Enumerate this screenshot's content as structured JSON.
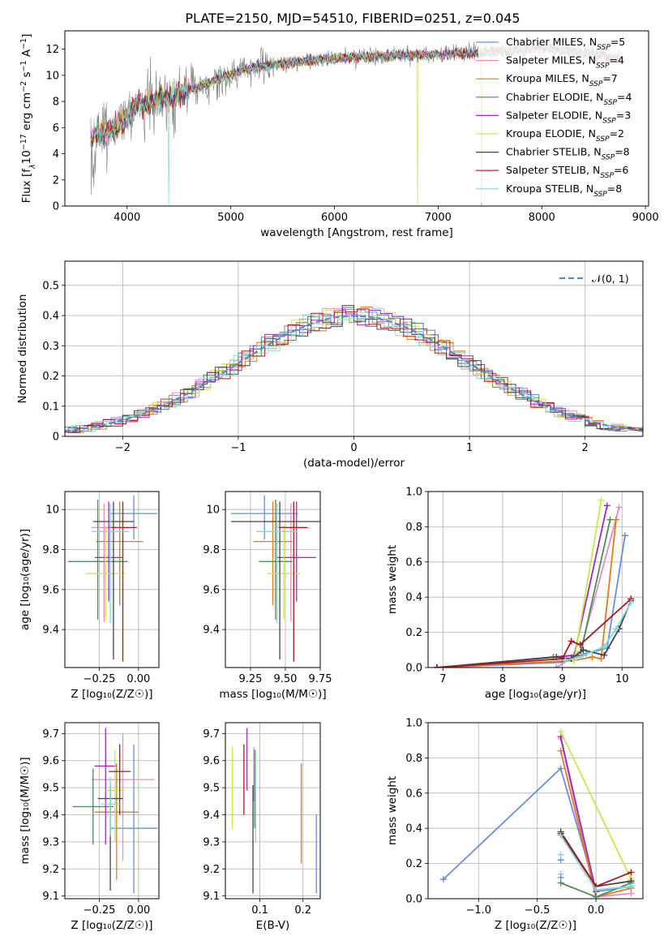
{
  "figure_title": "PLATE=2150, MJD=54510, FIBERID=0251, z=0.045",
  "legend_models": [
    {
      "name": "Chabrier MILES",
      "nssp": "5",
      "color": "#6a8edb"
    },
    {
      "name": "Salpeter MILES",
      "nssp": "4",
      "color": "#e88ac1"
    },
    {
      "name": "Kroupa MILES",
      "nssp": "7",
      "color": "#e07b1a"
    },
    {
      "name": "Chabrier ELODIE",
      "nssp": "4",
      "color": "#4f8a5b"
    },
    {
      "name": "Salpeter ELODIE",
      "nssp": "3",
      "color": "#9a2dbd"
    },
    {
      "name": "Kroupa ELODIE",
      "nssp": "2",
      "color": "#c9e64a"
    },
    {
      "name": "Chabrier STELIB",
      "nssp": "8",
      "color": "#444444"
    },
    {
      "name": "Salpeter STELIB",
      "nssp": "6",
      "color": "#b0141c"
    },
    {
      "name": "Kroupa STELIB",
      "nssp": "8",
      "color": "#7fd8dc"
    }
  ],
  "legend_prefix_nssp": "N",
  "legend_sub_ssp": "SSP",
  "chart_data": [
    {
      "id": "spectrum",
      "type": "line",
      "xlabel": "wavelength [Angstrom, rest frame]",
      "ylabel_parts": [
        "Flux [f",
        "λ",
        "10",
        "−17",
        " erg cm",
        "−2",
        " s",
        "−1",
        " A",
        "−1",
        "]"
      ],
      "xlim": [
        3400,
        9030
      ],
      "ylim": [
        0,
        13.4
      ],
      "xticks": [
        4000,
        5000,
        6000,
        7000,
        8000,
        9000
      ],
      "yticks": [
        0,
        2,
        4,
        6,
        8,
        10,
        12
      ],
      "continuum_points": [
        [
          3650,
          5.3
        ],
        [
          3900,
          6.0
        ],
        [
          4100,
          7.8
        ],
        [
          4400,
          8.3
        ],
        [
          4800,
          9.5
        ],
        [
          5200,
          10.6
        ],
        [
          5600,
          11.0
        ],
        [
          6000,
          11.3
        ],
        [
          6500,
          11.5
        ],
        [
          7000,
          11.6
        ],
        [
          7400,
          11.7
        ],
        [
          8000,
          12.1
        ],
        [
          8500,
          11.6
        ],
        [
          8750,
          11.2
        ]
      ],
      "data_range": [
        3650,
        8750
      ],
      "model_range": [
        3650,
        8750
      ],
      "dropouts": [
        [
          3900,
          1.0
        ],
        [
          4400,
          0.0
        ],
        [
          6800,
          0.0
        ],
        [
          7420,
          0.0
        ]
      ]
    },
    {
      "id": "residuals",
      "type": "line",
      "xlabel": "(data-model)/error",
      "ylabel": "Normed distribution",
      "xlim": [
        -2.5,
        2.5
      ],
      "ylim": [
        0,
        0.58
      ],
      "xticks": [
        -2,
        -1,
        0,
        1,
        2
      ],
      "yticks": [
        0.0,
        0.1,
        0.2,
        0.3,
        0.4,
        0.5
      ],
      "grid": true,
      "gaussian_label": "𝒩(0, 1)",
      "gaussian_color": "#5b86d6",
      "legend_position": "top-right",
      "hist_bin_width": 0.1
    },
    {
      "id": "z-age",
      "type": "scatter",
      "xlabel": "Z [log₁₀(Z/Z☉)]",
      "ylabel": "age  [log₁₀(age/yr)]",
      "xlim": [
        -0.47,
        0.13
      ],
      "ylim": [
        9.21,
        10.09
      ],
      "xticks": [
        -0.25,
        0.0
      ],
      "xtick_labels": [
        "−0.25",
        "0.00"
      ],
      "yticks": [
        9.4,
        9.6,
        9.8,
        10.0
      ],
      "grid": true,
      "points": [
        {
          "x": -0.03,
          "xerr": 0.15,
          "y": 9.98,
          "yerr": [
            0.13,
            0.09
          ],
          "color": "#6a8edb"
        },
        {
          "x": -0.22,
          "xerr": 0.08,
          "y": 9.91,
          "yerr": [
            0.47,
            0.12
          ],
          "color": "#e88ac1"
        },
        {
          "x": -0.12,
          "xerr": 0.15,
          "y": 9.84,
          "yerr": [
            0.32,
            0.2
          ],
          "color": "#e07b1a"
        },
        {
          "x": -0.26,
          "xerr": 0.19,
          "y": 9.74,
          "yerr": [
            0.29,
            0.31
          ],
          "color": "#4f8a5b"
        },
        {
          "x": -0.19,
          "xerr": 0.09,
          "y": 9.76,
          "yerr": [
            0.22,
            0.28
          ],
          "color": "#9a2dbd"
        },
        {
          "x": -0.21,
          "xerr": 0.13,
          "y": 9.68,
          "yerr": [
            0.23,
            0.24
          ],
          "color": "#c9e64a"
        },
        {
          "x": -0.16,
          "xerr": 0.13,
          "y": 9.94,
          "yerr": [
            0.69,
            0.1
          ],
          "color": "#444444"
        },
        {
          "x": -0.1,
          "xerr": 0.09,
          "y": 9.91,
          "yerr": [
            0.67,
            0.13
          ],
          "color": "#b0141c"
        },
        {
          "x": -0.18,
          "xerr": 0.12,
          "y": 9.89,
          "yerr": [
            0.46,
            0.14
          ],
          "color": "#7fd8dc"
        }
      ]
    },
    {
      "id": "mass-age",
      "type": "scatter",
      "xlabel": "mass [log₁₀(M/M☉)]",
      "ylabel": "",
      "xlim": [
        9.07,
        9.75
      ],
      "ylim": [
        9.21,
        10.09
      ],
      "xticks": [
        9.25,
        9.5,
        9.75
      ],
      "xtick_labels": [
        "9.25",
        "9.50",
        "9.75"
      ],
      "yticks": [
        9.4,
        9.6,
        9.8,
        10.0
      ],
      "grid": true,
      "points": [
        {
          "x": 9.35,
          "xerr": 0.24,
          "y": 9.98,
          "yerr": [
            0.13,
            0.09
          ],
          "color": "#6a8edb"
        },
        {
          "x": 9.54,
          "xerr": 0.1,
          "y": 9.91,
          "yerr": [
            0.47,
            0.12
          ],
          "color": "#e88ac1"
        },
        {
          "x": 9.41,
          "xerr": 0.14,
          "y": 9.84,
          "yerr": [
            0.32,
            0.2
          ],
          "color": "#e07b1a"
        },
        {
          "x": 9.43,
          "xerr": 0.12,
          "y": 9.74,
          "yerr": [
            0.29,
            0.31
          ],
          "color": "#4f8a5b"
        },
        {
          "x": 9.58,
          "xerr": 0.14,
          "y": 9.76,
          "yerr": [
            0.22,
            0.28
          ],
          "color": "#9a2dbd"
        },
        {
          "x": 9.49,
          "xerr": 0.12,
          "y": 9.68,
          "yerr": [
            0.23,
            0.24
          ],
          "color": "#c9e64a"
        },
        {
          "x": 9.46,
          "xerr": 0.35,
          "y": 9.94,
          "yerr": [
            0.69,
            0.1
          ],
          "color": "#444444"
        },
        {
          "x": 9.56,
          "xerr": 0.1,
          "y": 9.91,
          "yerr": [
            0.67,
            0.13
          ],
          "color": "#b0141c"
        },
        {
          "x": 9.44,
          "xerr": 0.15,
          "y": 9.89,
          "yerr": [
            0.46,
            0.14
          ],
          "color": "#7fd8dc"
        }
      ]
    },
    {
      "id": "weight-age",
      "type": "line",
      "xlabel": "age  [log₁₀(age/yr)]",
      "ylabel": "mass weight",
      "xlim": [
        6.75,
        10.35
      ],
      "ylim": [
        0,
        1.0
      ],
      "xticks": [
        7,
        8,
        9,
        10
      ],
      "yticks": [
        0.0,
        0.2,
        0.4,
        0.6,
        0.8,
        1.0
      ],
      "ytick_labels": [
        "0.0",
        "0.2",
        "0.4",
        "0.6",
        "0.8",
        "1.0"
      ],
      "grid": true,
      "series": [
        {
          "color": "#6a8edb",
          "x": [
            6.9,
            9.0,
            9.4,
            9.75,
            10.05
          ],
          "y": [
            0.0,
            0.03,
            0.08,
            0.11,
            0.75
          ]
        },
        {
          "color": "#e88ac1",
          "x": [
            8.9,
            9.3,
            9.95
          ],
          "y": [
            0.0,
            0.09,
            0.91
          ]
        },
        {
          "color": "#e07b1a",
          "x": [
            6.9,
            9.2,
            9.5,
            9.65,
            9.9
          ],
          "y": [
            0.0,
            0.04,
            0.06,
            0.05,
            0.84
          ]
        },
        {
          "color": "#4f8a5b",
          "x": [
            6.9,
            8.85,
            9.3,
            9.8
          ],
          "y": [
            0.0,
            0.06,
            0.07,
            0.84
          ]
        },
        {
          "color": "#9a2dbd",
          "x": [
            6.9,
            9.2,
            9.75
          ],
          "y": [
            0.0,
            0.07,
            0.92
          ]
        },
        {
          "color": "#c9e64a",
          "x": [
            9.2,
            9.65
          ],
          "y": [
            0.04,
            0.95
          ]
        },
        {
          "color": "#444444",
          "x": [
            6.9,
            8.9,
            9.15,
            9.35,
            9.7,
            9.95,
            10.15
          ],
          "y": [
            0.0,
            0.06,
            0.05,
            0.1,
            0.07,
            0.22,
            0.38
          ]
        },
        {
          "color": "#b0141c",
          "x": [
            6.9,
            9.0,
            9.15,
            9.3,
            10.15
          ],
          "y": [
            0.0,
            0.05,
            0.15,
            0.13,
            0.39
          ]
        },
        {
          "color": "#7fd8dc",
          "x": [
            9.05,
            9.3,
            9.7,
            9.9,
            10.15
          ],
          "y": [
            0.04,
            0.06,
            0.12,
            0.22,
            0.37
          ]
        }
      ]
    },
    {
      "id": "z-mass",
      "type": "scatter",
      "xlabel": "Z [log₁₀(Z/Z☉)]",
      "ylabel": "mass [log₁₀(M/M☉)]",
      "xlim": [
        -0.47,
        0.13
      ],
      "ylim": [
        9.09,
        9.74
      ],
      "xticks": [
        -0.25,
        0.0
      ],
      "xtick_labels": [
        "−0.25",
        "0.00"
      ],
      "yticks": [
        9.1,
        9.2,
        9.3,
        9.4,
        9.5,
        9.6,
        9.7
      ],
      "grid": true,
      "points": [
        {
          "x": -0.03,
          "xerr": 0.15,
          "y": 9.35,
          "yerr": [
            0.24,
            0.31
          ],
          "color": "#6a8edb"
        },
        {
          "x": -0.1,
          "xerr": 0.2,
          "y": 9.53,
          "yerr": [
            0.3,
            0.17
          ],
          "color": "#e88ac1"
        },
        {
          "x": -0.14,
          "xerr": 0.14,
          "y": 9.41,
          "yerr": [
            0.25,
            0.18
          ],
          "color": "#e07b1a"
        },
        {
          "x": -0.29,
          "xerr": 0.13,
          "y": 9.43,
          "yerr": [
            0.14,
            0.14
          ],
          "color": "#4f8a5b"
        },
        {
          "x": -0.21,
          "xerr": 0.07,
          "y": 9.58,
          "yerr": [
            0.29,
            0.14
          ],
          "color": "#9a2dbd"
        },
        {
          "x": -0.15,
          "xerr": 0.06,
          "y": 9.49,
          "yerr": [
            0.19,
            0.15
          ],
          "color": "#c9e64a"
        },
        {
          "x": -0.18,
          "xerr": 0.08,
          "y": 9.46,
          "yerr": [
            0.34,
            0.05
          ],
          "color": "#444444"
        },
        {
          "x": -0.12,
          "xerr": 0.07,
          "y": 9.56,
          "yerr": [
            0.16,
            0.1
          ],
          "color": "#b0141c"
        },
        {
          "x": -0.18,
          "xerr": 0.06,
          "y": 9.44,
          "yerr": [
            0.12,
            0.1
          ],
          "color": "#7fd8dc"
        }
      ]
    },
    {
      "id": "ebv-mass",
      "type": "scatter",
      "xlabel": "E(B-V)",
      "ylabel": "",
      "xlim": [
        0.02,
        0.24
      ],
      "ylim": [
        9.09,
        9.74
      ],
      "xticks": [
        0.1,
        0.2
      ],
      "xtick_labels": [
        "0.1",
        "0.2"
      ],
      "yticks": [
        9.1,
        9.2,
        9.3,
        9.4,
        9.5,
        9.6,
        9.7
      ],
      "grid": true,
      "points": [
        {
          "x": 0.231,
          "y": 9.26,
          "yerr": [
            0.15,
            0.14
          ],
          "color": "#6a8edb"
        },
        {
          "x": 0.086,
          "y": 9.57,
          "yerr": [
            0.12,
            0.08
          ],
          "color": "#e88ac1"
        },
        {
          "x": 0.196,
          "y": 9.41,
          "yerr": [
            0.19,
            0.18
          ],
          "color": "#e07b1a"
        },
        {
          "x": 0.088,
          "y": 9.47,
          "yerr": [
            0.12,
            0.17
          ],
          "color": "#4f8a5b"
        },
        {
          "x": 0.07,
          "y": 9.58,
          "yerr": [
            0.09,
            0.14
          ],
          "color": "#9a2dbd"
        },
        {
          "x": 0.036,
          "y": 9.5,
          "yerr": [
            0.15,
            0.15
          ],
          "color": "#c9e64a"
        },
        {
          "x": 0.084,
          "y": 9.33,
          "yerr": [
            0.22,
            0.18
          ],
          "color": "#444444"
        },
        {
          "x": 0.063,
          "y": 9.51,
          "yerr": [
            0.11,
            0.15
          ],
          "color": "#b0141c"
        },
        {
          "x": 0.09,
          "y": 9.42,
          "yerr": [
            0.12,
            0.22
          ],
          "color": "#7fd8dc"
        }
      ]
    },
    {
      "id": "weight-z",
      "type": "line",
      "xlabel": "Z [log₁₀(Z/Z☉)]",
      "ylabel": "mass weight",
      "xlim": [
        -1.43,
        0.4
      ],
      "ylim": [
        0,
        1.0
      ],
      "xticks": [
        -1.0,
        -0.5,
        0.0
      ],
      "xtick_labels": [
        "−1.0",
        "−0.5",
        "0.0"
      ],
      "yticks": [
        0.0,
        0.2,
        0.4,
        0.6,
        0.8,
        1.0
      ],
      "ytick_labels": [
        "0.0",
        "0.2",
        "0.4",
        "0.6",
        "0.8",
        "1.0"
      ],
      "grid": true,
      "series": [
        {
          "color": "#6a8edb",
          "x": [
            -1.3,
            -0.3,
            0.0,
            0.3
          ],
          "y": [
            0.11,
            0.74,
            0.04,
            0.07
          ]
        },
        {
          "color": "#e88ac1",
          "x": [
            -0.3,
            0.0,
            0.3
          ],
          "y": [
            0.91,
            0.01,
            0.03
          ]
        },
        {
          "color": "#e07b1a",
          "x": [
            -0.3,
            0.0,
            0.3
          ],
          "y": [
            0.84,
            0.01,
            0.06
          ]
        },
        {
          "color": "#4f8a5b",
          "x": [
            -0.3,
            0.0,
            0.3
          ],
          "y": [
            0.09,
            0.01,
            0.09
          ]
        },
        {
          "color": "#9a2dbd",
          "x": [
            -0.3,
            0.0
          ],
          "y": [
            0.92,
            0.04
          ]
        },
        {
          "color": "#c9e64a",
          "x": [
            -0.3,
            0.3
          ],
          "y": [
            0.95,
            0.11
          ]
        },
        {
          "color": "#444444",
          "x": [
            -0.3,
            0.0,
            0.3
          ],
          "y": [
            0.38,
            0.07,
            0.1
          ]
        },
        {
          "color": "#b0141c",
          "x": [
            -0.3,
            0.0,
            0.3
          ],
          "y": [
            0.37,
            0.07,
            0.15
          ]
        },
        {
          "color": "#7fd8dc",
          "x": [
            -0.3,
            0.0,
            0.3
          ],
          "y": [
            0.36,
            0.05,
            0.07
          ]
        }
      ],
      "extra_markers": [
        {
          "x": -0.3,
          "y": 0.22,
          "color": "#6a8edb"
        },
        {
          "x": -0.3,
          "y": 0.14,
          "color": "#7fd8dc"
        },
        {
          "x": -0.3,
          "y": 0.12,
          "color": "#6a8edb"
        },
        {
          "x": -0.3,
          "y": 0.25,
          "color": "#7fd8dc"
        }
      ]
    }
  ]
}
